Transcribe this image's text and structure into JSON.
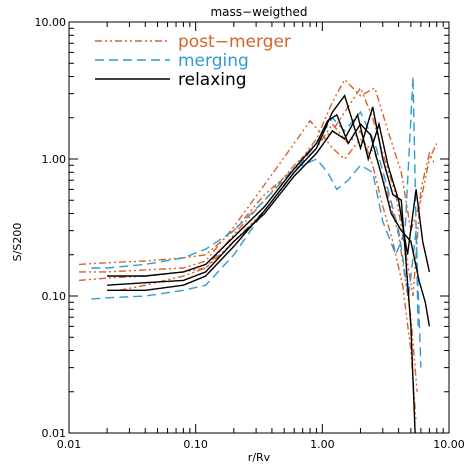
{
  "chart_data": {
    "type": "line",
    "title": "mass−weigthed",
    "xlabel": "r/Rv",
    "ylabel": "S/S200",
    "x_scale": "log",
    "y_scale": "log",
    "xlim": [
      0.01,
      10.0
    ],
    "ylim": [
      0.01,
      10.0
    ],
    "x_ticks": [
      0.01,
      0.1,
      1.0,
      10.0
    ],
    "x_tick_labels": [
      "0.01",
      "0.10",
      "1.00",
      "10.00"
    ],
    "y_ticks": [
      0.01,
      0.1,
      1.0,
      10.0
    ],
    "y_tick_labels": [
      "0.01",
      "0.10",
      "1.00",
      "10.00"
    ],
    "grid": false,
    "legend_position": "top-left",
    "legend": [
      {
        "label": "post−merger",
        "color": "#d8622a",
        "style": "dash-dot"
      },
      {
        "label": "merging",
        "color": "#2f9bd3",
        "style": "dashed"
      },
      {
        "label": "relaxing",
        "color": "#000000",
        "style": "solid"
      }
    ],
    "series": [
      {
        "group": "post-merger",
        "color": "#d8622a",
        "style": "dash-dot",
        "x": [
          0.012,
          0.02,
          0.04,
          0.08,
          0.12,
          0.2,
          0.35,
          0.6,
          0.9,
          1.2,
          1.5,
          2.0,
          2.6,
          3.3,
          4.2,
          5.0,
          6.0,
          7.0,
          8.0
        ],
        "y": [
          0.17,
          0.175,
          0.18,
          0.19,
          0.2,
          0.3,
          0.55,
          0.85,
          1.4,
          2.6,
          3.8,
          2.9,
          3.3,
          1.6,
          0.8,
          0.3,
          0.5,
          1.0,
          1.3
        ]
      },
      {
        "group": "post-merger",
        "color": "#d8622a",
        "style": "dash-dot",
        "x": [
          0.012,
          0.02,
          0.04,
          0.08,
          0.12,
          0.2,
          0.35,
          0.6,
          0.9,
          1.2,
          1.6,
          2.0,
          2.5,
          3.0,
          3.6,
          4.3,
          5.0,
          5.5
        ],
        "y": [
          0.13,
          0.135,
          0.14,
          0.15,
          0.16,
          0.25,
          0.42,
          0.8,
          1.2,
          1.8,
          1.3,
          1.6,
          0.9,
          0.45,
          0.25,
          0.12,
          0.04,
          0.012
        ]
      },
      {
        "group": "post-merger",
        "color": "#d8622a",
        "style": "dash-dot",
        "x": [
          0.012,
          0.02,
          0.04,
          0.08,
          0.12,
          0.2,
          0.35,
          0.6,
          0.8,
          1.0,
          1.2,
          1.5,
          2.0,
          2.6,
          3.2,
          4.0,
          5.0,
          5.6
        ],
        "y": [
          0.15,
          0.15,
          0.155,
          0.16,
          0.18,
          0.32,
          0.65,
          1.3,
          1.9,
          1.5,
          1.2,
          1.0,
          1.4,
          1.1,
          0.6,
          0.28,
          0.07,
          0.02
        ]
      },
      {
        "group": "post-merger",
        "color": "#d8622a",
        "style": "dash-dot",
        "x": [
          0.025,
          0.04,
          0.08,
          0.12,
          0.2,
          0.35,
          0.6,
          0.9,
          1.2,
          1.6,
          2.0,
          2.5,
          3.0,
          3.8,
          4.5,
          5.2,
          6.0,
          7.0,
          7.8
        ],
        "y": [
          0.11,
          0.12,
          0.14,
          0.16,
          0.28,
          0.5,
          0.9,
          1.3,
          1.6,
          2.4,
          3.3,
          2.0,
          1.1,
          0.55,
          0.22,
          0.1,
          0.6,
          1.1,
          0.9
        ]
      },
      {
        "group": "merging",
        "color": "#2f9bd3",
        "style": "dashed",
        "x": [
          0.015,
          0.02,
          0.04,
          0.08,
          0.12,
          0.2,
          0.35,
          0.6,
          0.9,
          1.2,
          1.5,
          2.0,
          2.6,
          3.3,
          4.0,
          4.8,
          5.5,
          6.0
        ],
        "y": [
          0.095,
          0.097,
          0.1,
          0.11,
          0.12,
          0.2,
          0.42,
          0.8,
          1.3,
          2.0,
          1.6,
          2.2,
          1.3,
          0.6,
          0.3,
          0.1,
          0.3,
          0.03
        ]
      },
      {
        "group": "merging",
        "color": "#2f9bd3",
        "style": "dashed",
        "x": [
          0.015,
          0.02,
          0.04,
          0.08,
          0.12,
          0.2,
          0.35,
          0.6,
          0.9,
          1.1,
          1.3,
          1.6,
          2.0,
          2.5,
          3.0,
          3.8,
          4.5,
          5.2,
          5.7
        ],
        "y": [
          0.16,
          0.16,
          0.17,
          0.19,
          0.22,
          0.3,
          0.5,
          0.85,
          1.0,
          0.8,
          0.6,
          0.7,
          0.9,
          0.8,
          0.35,
          0.2,
          0.3,
          4.0,
          0.06
        ]
      },
      {
        "group": "relaxing",
        "color": "#000000",
        "style": "solid",
        "x": [
          0.02,
          0.04,
          0.08,
          0.12,
          0.2,
          0.35,
          0.6,
          0.9,
          1.2,
          1.5,
          1.7,
          2.0,
          2.5,
          3.0,
          3.6,
          4.2,
          5.0,
          5.4
        ],
        "y": [
          0.11,
          0.11,
          0.12,
          0.14,
          0.23,
          0.42,
          0.8,
          1.2,
          2.2,
          2.9,
          2.0,
          1.2,
          2.4,
          1.0,
          0.55,
          0.5,
          0.06,
          0.01
        ]
      },
      {
        "group": "relaxing",
        "color": "#000000",
        "style": "solid",
        "x": [
          0.02,
          0.04,
          0.08,
          0.12,
          0.2,
          0.35,
          0.6,
          0.9,
          1.1,
          1.3,
          1.6,
          2.0,
          2.4,
          3.0,
          3.5,
          4.2,
          5.0,
          5.8,
          6.5,
          7.0
        ],
        "y": [
          0.14,
          0.14,
          0.15,
          0.17,
          0.27,
          0.45,
          0.85,
          1.3,
          1.9,
          2.1,
          1.3,
          1.8,
          1.5,
          0.7,
          0.4,
          0.3,
          0.25,
          0.13,
          0.09,
          0.06
        ]
      },
      {
        "group": "relaxing",
        "color": "#000000",
        "style": "solid",
        "x": [
          0.02,
          0.04,
          0.08,
          0.12,
          0.2,
          0.35,
          0.6,
          0.9,
          1.2,
          1.5,
          1.9,
          2.3,
          2.8,
          3.3,
          4.0,
          4.7,
          5.5,
          6.2,
          7.0
        ],
        "y": [
          0.12,
          0.125,
          0.13,
          0.15,
          0.25,
          0.4,
          0.75,
          1.1,
          1.6,
          1.4,
          2.1,
          1.0,
          1.8,
          0.9,
          0.5,
          0.2,
          0.6,
          0.25,
          0.15
        ]
      }
    ]
  }
}
